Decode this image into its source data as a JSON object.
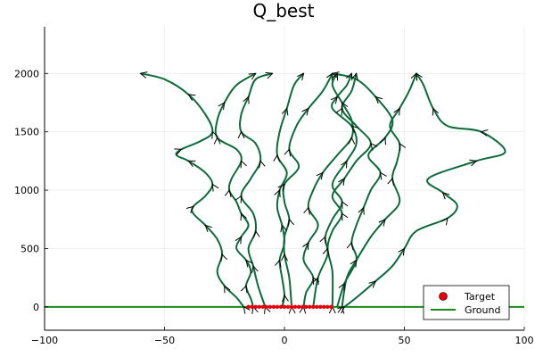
{
  "chart_data": {
    "type": "line",
    "title": "Q_best",
    "xlabel": "",
    "ylabel": "",
    "xlim": [
      -100,
      100
    ],
    "ylim": [
      -200,
      2400
    ],
    "xticks": [
      -100,
      -50,
      0,
      50,
      100
    ],
    "yticks": [
      0,
      500,
      1000,
      1500,
      2000
    ],
    "grid": true,
    "legend_position": "bottom-right",
    "colors": {
      "trajectory": "#0b6b3a",
      "ground": "#1a8a1a",
      "target": "#e8000b",
      "arrow": "#000000"
    },
    "legend": [
      {
        "label": "Target",
        "marker": "circle",
        "color": "#e8000b"
      },
      {
        "label": "Ground",
        "marker": "line",
        "color": "#1a8a1a"
      }
    ],
    "ground": {
      "y": 0
    },
    "target": {
      "y": 0,
      "x_range": [
        -15,
        20
      ]
    },
    "series": [
      {
        "x": [
          -60,
          -50,
          -40,
          -33,
          -30,
          -35,
          -43,
          -45,
          -40,
          -33,
          -30,
          -33,
          -38,
          -38,
          -33,
          -28,
          -26,
          -28,
          -25,
          -20,
          -17
        ],
        "y": [
          2000,
          1950,
          1820,
          1650,
          1500,
          1420,
          1350,
          1300,
          1250,
          1150,
          1050,
          950,
          860,
          800,
          700,
          580,
          450,
          300,
          180,
          80,
          0
        ]
      },
      {
        "x": [
          -12,
          -20,
          -25,
          -28,
          -28,
          -20,
          -18,
          -22,
          -23,
          -20,
          -18,
          -15,
          -18,
          -20,
          -16,
          -14,
          -16,
          -14,
          -13
        ],
        "y": [
          2000,
          1900,
          1750,
          1600,
          1450,
          1350,
          1250,
          1100,
          1000,
          900,
          800,
          700,
          600,
          500,
          400,
          300,
          180,
          70,
          0
        ]
      },
      {
        "x": [
          -5,
          -12,
          -15,
          -18,
          -18,
          -12,
          -10,
          -14,
          -18,
          -13,
          -12,
          -15,
          -13,
          -11,
          -8
        ],
        "y": [
          2000,
          1950,
          1800,
          1650,
          1500,
          1400,
          1250,
          1100,
          950,
          800,
          650,
          500,
          350,
          180,
          0
        ]
      },
      {
        "x": [
          8,
          4,
          1,
          -2,
          -3,
          1,
          -2,
          -3,
          -1,
          0,
          -2,
          -1,
          0,
          -1
        ],
        "y": [
          2000,
          1900,
          1700,
          1500,
          1300,
          1150,
          1000,
          850,
          700,
          550,
          400,
          250,
          100,
          0
        ]
      },
      {
        "x": [
          20,
          16,
          10,
          5,
          2,
          6,
          0,
          0,
          2,
          0,
          0,
          2,
          3
        ],
        "y": [
          2000,
          1850,
          1700,
          1550,
          1350,
          1200,
          1050,
          900,
          750,
          600,
          450,
          250,
          0
        ]
      },
      {
        "x": [
          22,
          20,
          24,
          28,
          28,
          22,
          16,
          12,
          10,
          14,
          10,
          8,
          12,
          9,
          8
        ],
        "y": [
          2000,
          1900,
          1750,
          1600,
          1450,
          1300,
          1150,
          1000,
          850,
          700,
          550,
          400,
          250,
          120,
          0
        ]
      },
      {
        "x": [
          28,
          26,
          22,
          20,
          28,
          30,
          26,
          20,
          24,
          20,
          17,
          18,
          14,
          12
        ],
        "y": [
          2000,
          1900,
          1800,
          1700,
          1550,
          1400,
          1250,
          1050,
          900,
          750,
          600,
          450,
          250,
          0
        ]
      },
      {
        "x": [
          30,
          28,
          24,
          30,
          36,
          30,
          25,
          20,
          24,
          20,
          18,
          20,
          20
        ],
        "y": [
          2000,
          1850,
          1700,
          1550,
          1400,
          1250,
          1100,
          950,
          800,
          650,
          500,
          300,
          0
        ]
      },
      {
        "x": [
          20,
          30,
          38,
          45,
          42,
          35,
          40,
          36,
          33,
          30,
          28,
          30,
          25,
          22
        ],
        "y": [
          2000,
          1950,
          1800,
          1600,
          1450,
          1300,
          1150,
          1000,
          850,
          700,
          550,
          400,
          200,
          0
        ]
      },
      {
        "x": [
          55,
          52,
          48,
          44,
          48,
          47,
          45,
          48,
          42,
          36,
          30,
          26,
          24
        ],
        "y": [
          2000,
          1850,
          1700,
          1550,
          1400,
          1250,
          1100,
          900,
          750,
          600,
          400,
          250,
          0
        ]
      },
      {
        "x": [
          55,
          58,
          62,
          68,
          82,
          92,
          80,
          60,
          66,
          72,
          68,
          55,
          50,
          45,
          38,
          30,
          25
        ],
        "y": [
          2000,
          1900,
          1700,
          1550,
          1500,
          1330,
          1250,
          1100,
          980,
          870,
          760,
          650,
          500,
          350,
          220,
          80,
          0
        ]
      }
    ]
  }
}
